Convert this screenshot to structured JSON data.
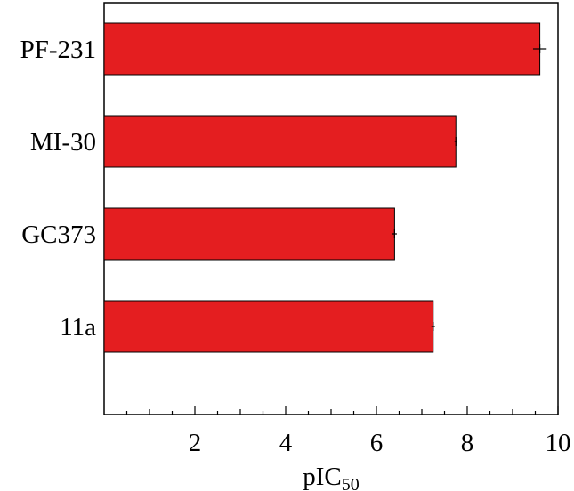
{
  "chart_data": {
    "type": "bar",
    "orientation": "horizontal",
    "categories": [
      "PF-231",
      "MI-30",
      "GC373",
      "11a"
    ],
    "values": [
      9.6,
      7.75,
      6.4,
      7.25
    ],
    "errors": [
      0.15,
      0.03,
      0.05,
      0.04
    ],
    "xlabel": "pIC",
    "xlabel_subscript": "50",
    "xlim": [
      0,
      10
    ],
    "xticks": [
      2,
      4,
      6,
      8,
      10
    ],
    "minor_tick_step": 0.5,
    "grid": false,
    "legend": "none",
    "bar_color": "#e41e20"
  }
}
